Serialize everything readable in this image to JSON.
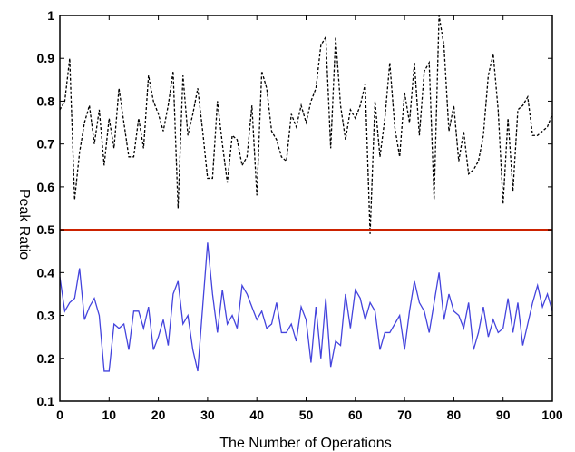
{
  "chart_data": {
    "type": "line",
    "title": "",
    "xlabel": "The Number of Operations",
    "ylabel": "Peak Ratio",
    "xlim": [
      0,
      100
    ],
    "ylim": [
      0.1,
      1
    ],
    "xticks": [
      "0",
      "10",
      "20",
      "30",
      "40",
      "50",
      "60",
      "70",
      "80",
      "90",
      "100"
    ],
    "yticks": [
      "0.1",
      "0.2",
      "0.3",
      "0.4",
      "0.5",
      "0.6",
      "0.7",
      "0.8",
      "0.9",
      "1"
    ],
    "grid": false,
    "legend": "none",
    "x": [
      0,
      1,
      2,
      3,
      4,
      5,
      6,
      7,
      8,
      9,
      10,
      11,
      12,
      13,
      14,
      15,
      16,
      17,
      18,
      19,
      20,
      21,
      22,
      23,
      24,
      25,
      26,
      27,
      28,
      29,
      30,
      31,
      32,
      33,
      34,
      35,
      36,
      37,
      38,
      39,
      40,
      41,
      42,
      43,
      44,
      45,
      46,
      47,
      48,
      49,
      50,
      51,
      52,
      53,
      54,
      55,
      56,
      57,
      58,
      59,
      60,
      61,
      62,
      63,
      64,
      65,
      66,
      67,
      68,
      69,
      70,
      71,
      72,
      73,
      74,
      75,
      76,
      77,
      78,
      79,
      80,
      81,
      82,
      83,
      84,
      85,
      86,
      87,
      88,
      89,
      90,
      91,
      92,
      93,
      94,
      95,
      96,
      97,
      98,
      99,
      100
    ],
    "series": [
      {
        "color": "#000000",
        "style": "dashed",
        "values": [
          0.78,
          0.8,
          0.9,
          0.57,
          0.68,
          0.75,
          0.79,
          0.7,
          0.78,
          0.65,
          0.76,
          0.69,
          0.83,
          0.75,
          0.67,
          0.67,
          0.76,
          0.69,
          0.86,
          0.8,
          0.77,
          0.73,
          0.79,
          0.87,
          0.55,
          0.86,
          0.72,
          0.77,
          0.83,
          0.73,
          0.62,
          0.62,
          0.8,
          0.7,
          0.61,
          0.72,
          0.71,
          0.65,
          0.67,
          0.79,
          0.58,
          0.87,
          0.83,
          0.73,
          0.71,
          0.67,
          0.66,
          0.77,
          0.74,
          0.79,
          0.75,
          0.8,
          0.83,
          0.93,
          0.95,
          0.69,
          0.95,
          0.79,
          0.71,
          0.78,
          0.76,
          0.79,
          0.84,
          0.49,
          0.8,
          0.67,
          0.76,
          0.89,
          0.74,
          0.67,
          0.82,
          0.75,
          0.89,
          0.72,
          0.87,
          0.89,
          0.57,
          1.0,
          0.93,
          0.73,
          0.79,
          0.66,
          0.73,
          0.63,
          0.64,
          0.66,
          0.72,
          0.86,
          0.91,
          0.78,
          0.56,
          0.76,
          0.59,
          0.78,
          0.79,
          0.81,
          0.72,
          0.72,
          0.73,
          0.74,
          0.77
        ]
      },
      {
        "color": "#cc2200",
        "style": "solid",
        "values": [
          0.5,
          0.5,
          0.5,
          0.5,
          0.5,
          0.5,
          0.5,
          0.5,
          0.5,
          0.5,
          0.5,
          0.5,
          0.5,
          0.5,
          0.5,
          0.5,
          0.5,
          0.5,
          0.5,
          0.5,
          0.5,
          0.5,
          0.5,
          0.5,
          0.5,
          0.5,
          0.5,
          0.5,
          0.5,
          0.5,
          0.5,
          0.5,
          0.5,
          0.5,
          0.5,
          0.5,
          0.5,
          0.5,
          0.5,
          0.5,
          0.5,
          0.5,
          0.5,
          0.5,
          0.5,
          0.5,
          0.5,
          0.5,
          0.5,
          0.5,
          0.5,
          0.5,
          0.5,
          0.5,
          0.5,
          0.5,
          0.5,
          0.5,
          0.5,
          0.5,
          0.5,
          0.5,
          0.5,
          0.5,
          0.5,
          0.5,
          0.5,
          0.5,
          0.5,
          0.5,
          0.5,
          0.5,
          0.5,
          0.5,
          0.5,
          0.5,
          0.5,
          0.5,
          0.5,
          0.5,
          0.5,
          0.5,
          0.5,
          0.5,
          0.5,
          0.5,
          0.5,
          0.5,
          0.5,
          0.5,
          0.5,
          0.5,
          0.5,
          0.5,
          0.5,
          0.5,
          0.5,
          0.5,
          0.5,
          0.5,
          0.5
        ]
      },
      {
        "color": "#4444dd",
        "style": "solid",
        "values": [
          0.39,
          0.31,
          0.33,
          0.34,
          0.41,
          0.29,
          0.32,
          0.34,
          0.3,
          0.17,
          0.17,
          0.28,
          0.27,
          0.28,
          0.22,
          0.31,
          0.31,
          0.27,
          0.32,
          0.22,
          0.25,
          0.29,
          0.23,
          0.35,
          0.38,
          0.28,
          0.3,
          0.22,
          0.17,
          0.32,
          0.47,
          0.35,
          0.26,
          0.36,
          0.28,
          0.3,
          0.27,
          0.37,
          0.35,
          0.32,
          0.29,
          0.31,
          0.27,
          0.28,
          0.33,
          0.26,
          0.26,
          0.28,
          0.24,
          0.32,
          0.29,
          0.19,
          0.32,
          0.2,
          0.34,
          0.18,
          0.24,
          0.23,
          0.35,
          0.27,
          0.36,
          0.34,
          0.29,
          0.33,
          0.31,
          0.22,
          0.26,
          0.26,
          0.28,
          0.3,
          0.22,
          0.31,
          0.38,
          0.33,
          0.31,
          0.26,
          0.33,
          0.4,
          0.29,
          0.35,
          0.31,
          0.3,
          0.27,
          0.33,
          0.22,
          0.26,
          0.32,
          0.25,
          0.29,
          0.26,
          0.27,
          0.34,
          0.26,
          0.33,
          0.23,
          0.28,
          0.33,
          0.37,
          0.32,
          0.35,
          0.31
        ]
      }
    ]
  }
}
